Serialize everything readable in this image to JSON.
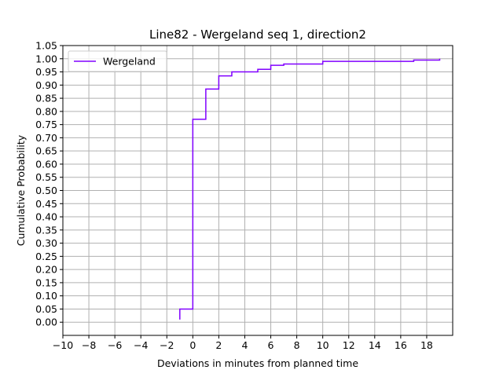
{
  "chart_data": {
    "type": "line",
    "step": "post",
    "title": "Line82 - Wergeland seq 1, direction2",
    "xlabel": "Deviations in minutes from planned time",
    "ylabel": "Cumulative Probability",
    "xlim": [
      -10,
      20
    ],
    "ylim": [
      -0.05,
      1.05
    ],
    "x_ticks": [
      -10,
      -8,
      -6,
      -4,
      -2,
      0,
      2,
      4,
      6,
      8,
      10,
      12,
      14,
      16,
      18
    ],
    "x_tick_labels": [
      "−10",
      "−8",
      "−6",
      "−4",
      "−2",
      "0",
      "2",
      "4",
      "6",
      "8",
      "10",
      "12",
      "14",
      "16",
      "18"
    ],
    "y_ticks": [
      0.0,
      0.05,
      0.1,
      0.15,
      0.2,
      0.25,
      0.3,
      0.35,
      0.4,
      0.45,
      0.5,
      0.55,
      0.6,
      0.65,
      0.7,
      0.75,
      0.8,
      0.85,
      0.9,
      0.95,
      1.0,
      1.05
    ],
    "y_tick_labels": [
      "0.00",
      "0.05",
      "0.10",
      "0.15",
      "0.20",
      "0.25",
      "0.30",
      "0.35",
      "0.40",
      "0.45",
      "0.50",
      "0.55",
      "0.60",
      "0.65",
      "0.70",
      "0.75",
      "0.80",
      "0.85",
      "0.90",
      "0.95",
      "1.00",
      "1.05"
    ],
    "grid": true,
    "legend_position": "top-left",
    "series": [
      {
        "name": "Wergeland",
        "color": "#8000ff",
        "x": [
          -1,
          -1,
          0,
          1,
          2,
          3,
          5,
          6,
          7,
          10,
          17,
          19
        ],
        "y": [
          0.01,
          0.05,
          0.77,
          0.885,
          0.935,
          0.95,
          0.96,
          0.975,
          0.98,
          0.99,
          0.995,
          1.0
        ]
      }
    ]
  }
}
